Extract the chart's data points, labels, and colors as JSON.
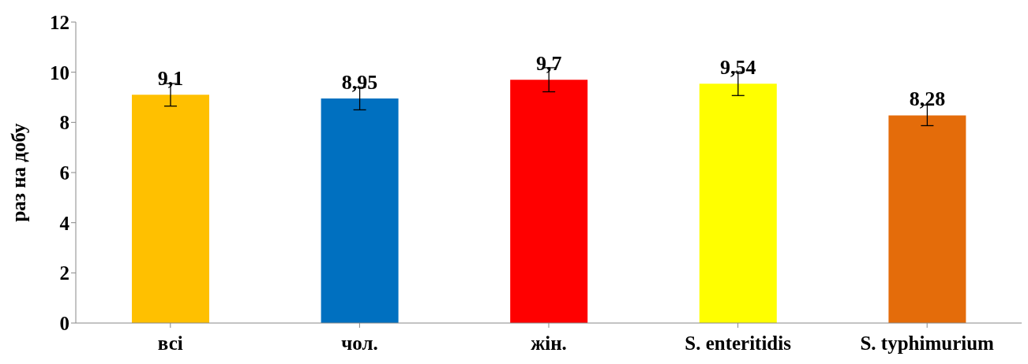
{
  "chart_data": {
    "type": "bar",
    "ylabel": "раз на добу",
    "categories": [
      "всі",
      "чол.",
      "жін.",
      "S. enteritidis",
      "S. typhimurium"
    ],
    "values": [
      9.1,
      8.95,
      9.7,
      9.54,
      8.28
    ],
    "colors": [
      "#ffc000",
      "#0070c0",
      "#ff0000",
      "#ffff00",
      "#e46c0a"
    ],
    "errors": [
      0.45,
      0.45,
      0.48,
      0.47,
      0.41
    ],
    "value_labels": [
      "9,1",
      "8,95",
      "9,7",
      "9,54",
      "8,28"
    ],
    "ylim": [
      0,
      12
    ],
    "yticks": [
      0,
      2,
      4,
      6,
      8,
      10,
      12
    ],
    "grid": false,
    "legend": false
  }
}
